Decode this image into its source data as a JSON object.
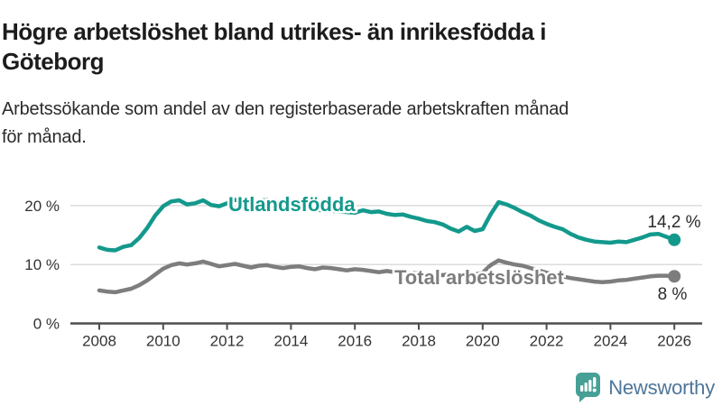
{
  "header": {
    "title_lines": [
      "Högre arbetslöshet bland utrikes- än inrikesfödda i",
      "Göteborg"
    ],
    "subtitle_lines": [
      "Arbetssökande som andel av den registerbaserade arbetskraften månad",
      "för månad."
    ]
  },
  "footer": {
    "brand": "Newsworthy",
    "logo_icon": "bar-chart-speech-bubble-icon",
    "logo_color": "#46a096",
    "brand_text_color": "#4e7699"
  },
  "chart_data": {
    "type": "line",
    "title": "Högre arbetslöshet bland utrikes- än inrikesfödda i Göteborg",
    "subtitle": "Arbetssökande som andel av den registerbaserade arbetskraften månad för månad.",
    "xlabel": "",
    "ylabel": "",
    "grid": "horizontal",
    "legend_position": "inline-labels",
    "ylim": [
      0,
      23
    ],
    "xlim": [
      2007.1,
      2026.9
    ],
    "y_ticks": [
      20,
      10,
      0
    ],
    "y_tick_suffix": " %",
    "x_ticks": [
      2008,
      2010,
      2012,
      2014,
      2016,
      2018,
      2020,
      2022,
      2024,
      2026
    ],
    "colors": {
      "grid": "#dcdcdc",
      "axis": "#4d4d4d",
      "tick_text": "#333333"
    },
    "x": [
      2008,
      2008.25,
      2008.5,
      2008.75,
      2009,
      2009.25,
      2009.5,
      2009.75,
      2010,
      2010.25,
      2010.5,
      2010.75,
      2011,
      2011.25,
      2011.5,
      2011.75,
      2012,
      2012.25,
      2012.5,
      2012.75,
      2013,
      2013.25,
      2013.5,
      2013.75,
      2014,
      2014.25,
      2014.5,
      2014.75,
      2015,
      2015.25,
      2015.5,
      2015.75,
      2016,
      2016.25,
      2016.5,
      2016.75,
      2017,
      2017.25,
      2017.5,
      2017.75,
      2018,
      2018.25,
      2018.5,
      2018.75,
      2019,
      2019.25,
      2019.5,
      2019.75,
      2020,
      2020.25,
      2020.5,
      2020.75,
      2021,
      2021.25,
      2021.5,
      2021.75,
      2022,
      2022.25,
      2022.5,
      2022.75,
      2023,
      2023.25,
      2023.5,
      2023.75,
      2024,
      2024.25,
      2024.5,
      2024.75,
      2025,
      2025.25,
      2025.5,
      2025.75,
      2026
    ],
    "series": [
      {
        "id": "utlandsfodda",
        "name": "Utlandsfödda",
        "color": "#13998c",
        "end_label": "14,2 %",
        "values": [
          12.9,
          12.5,
          12.4,
          13.0,
          13.3,
          14.5,
          16.2,
          18.3,
          19.9,
          20.7,
          20.9,
          20.2,
          20.4,
          20.9,
          20.1,
          19.9,
          20.4,
          21.0,
          20.6,
          20.3,
          20.8,
          21.0,
          20.5,
          20.1,
          19.9,
          19.7,
          19.5,
          19.3,
          19.2,
          19.1,
          19.0,
          18.9,
          18.8,
          19.2,
          18.9,
          19.0,
          18.6,
          18.4,
          18.5,
          18.1,
          17.8,
          17.4,
          17.2,
          16.8,
          16.1,
          15.6,
          16.4,
          15.7,
          16.0,
          18.5,
          20.6,
          20.2,
          19.6,
          18.9,
          18.3,
          17.5,
          16.9,
          16.4,
          16.0,
          15.2,
          14.6,
          14.2,
          13.9,
          13.8,
          13.7,
          13.9,
          13.8,
          14.2,
          14.6,
          15.1,
          15.2,
          14.7,
          14.2
        ]
      },
      {
        "id": "total",
        "name": "Total arbetslöshet",
        "color": "#7d7d7d",
        "end_label": "8 %",
        "values": [
          5.6,
          5.4,
          5.3,
          5.6,
          5.9,
          6.5,
          7.3,
          8.3,
          9.3,
          9.9,
          10.2,
          10.0,
          10.2,
          10.5,
          10.1,
          9.7,
          9.9,
          10.1,
          9.8,
          9.5,
          9.8,
          9.9,
          9.6,
          9.4,
          9.6,
          9.7,
          9.4,
          9.2,
          9.5,
          9.4,
          9.2,
          9.0,
          9.2,
          9.1,
          8.9,
          8.7,
          8.9,
          8.7,
          8.6,
          8.5,
          8.6,
          8.4,
          8.3,
          8.2,
          8.4,
          8.2,
          8.4,
          8.3,
          8.6,
          9.9,
          10.7,
          10.3,
          10.0,
          9.8,
          9.4,
          9.0,
          8.6,
          8.3,
          8.0,
          7.7,
          7.5,
          7.3,
          7.1,
          7.0,
          7.1,
          7.3,
          7.4,
          7.6,
          7.8,
          8.0,
          8.1,
          8.1,
          8.0
        ]
      }
    ]
  }
}
